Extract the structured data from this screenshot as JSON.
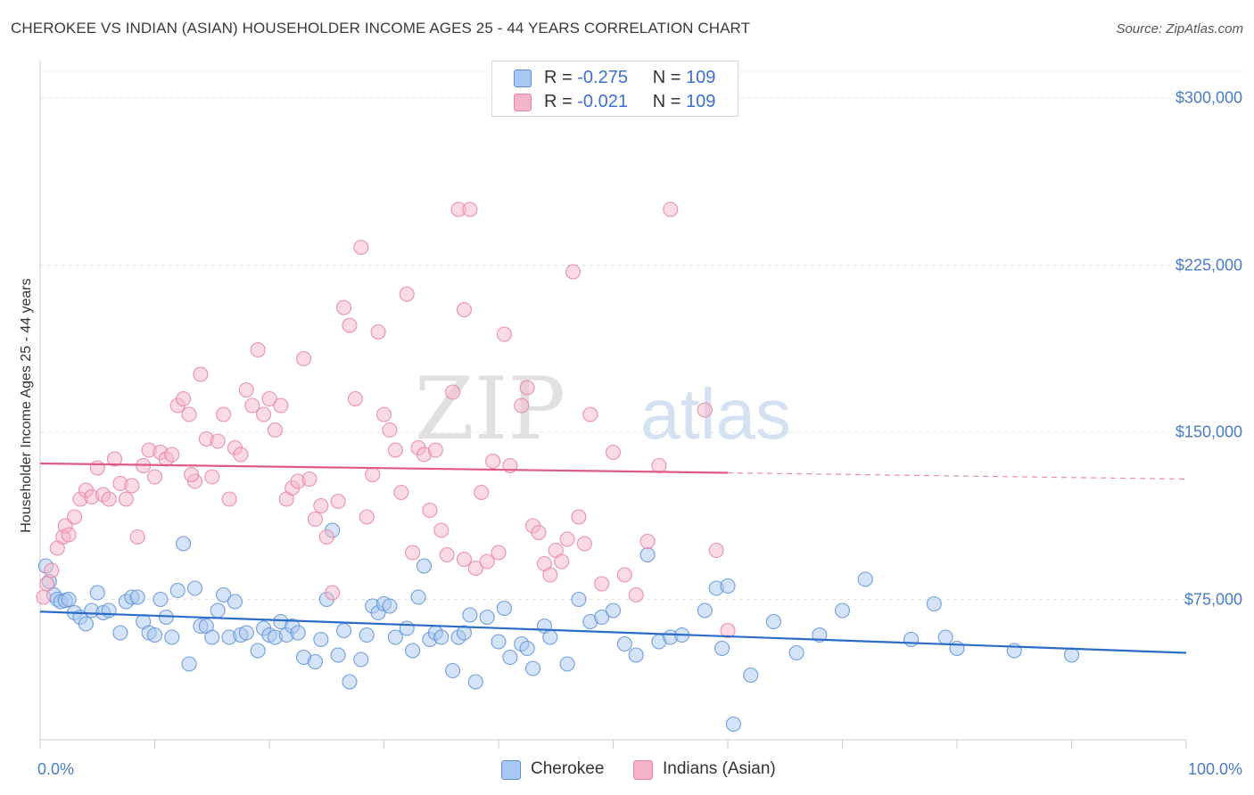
{
  "header": {
    "title": "CHEROKEE VS INDIAN (ASIAN) HOUSEHOLDER INCOME AGES 25 - 44 YEARS CORRELATION CHART",
    "source": "Source: ZipAtlas.com"
  },
  "watermark": {
    "zip": "ZIP",
    "atlas": "atlas"
  },
  "legend_stats": [
    {
      "r_label": "R =",
      "r_value": "-0.275",
      "n_label": "N =",
      "n_value": "109",
      "color": "#a9c7f0"
    },
    {
      "r_label": "R =",
      "r_value": "-0.021",
      "n_label": "N =",
      "n_value": "109",
      "color": "#f5b5c9"
    }
  ],
  "colors": {
    "cherokee_fill": "#a9c7f0",
    "cherokee_stroke": "#5a8fd8",
    "cherokee_line": "#2b6cc9",
    "indian_fill": "#f5b5c9",
    "indian_stroke": "#e8809f",
    "indian_line": "#e05a86",
    "axis_text": "#4a7cc4"
  },
  "chart_data": {
    "type": "scatter",
    "title": "CHEROKEE VS INDIAN (ASIAN) HOUSEHOLDER INCOME AGES 25 - 44 YEARS CORRELATION CHART",
    "xlabel": "",
    "ylabel": "Householder Income Ages 25 - 44 years",
    "xlim": [
      0,
      100
    ],
    "ylim": [
      12000,
      312000
    ],
    "x_tick_labels": [
      "0.0%",
      "100.0%"
    ],
    "y_ticks": [
      75000,
      150000,
      225000,
      300000
    ],
    "y_tick_labels": [
      "$75,000",
      "$150,000",
      "$225,000",
      "$300,000"
    ],
    "grid": true,
    "legend_position": "bottom",
    "series": [
      {
        "name": "Cherokee",
        "trend": {
          "x": [
            0,
            100
          ],
          "y": [
            69500,
            51000
          ],
          "dashed_from": 100
        },
        "points": [
          [
            0.5,
            90000
          ],
          [
            0.8,
            83000
          ],
          [
            1.2,
            77000
          ],
          [
            1.5,
            75000
          ],
          [
            1.8,
            74000
          ],
          [
            2.2,
            74500
          ],
          [
            2.5,
            75000
          ],
          [
            3,
            69000
          ],
          [
            3.5,
            67000
          ],
          [
            4,
            64000
          ],
          [
            4.5,
            70000
          ],
          [
            5,
            78000
          ],
          [
            5.5,
            69000
          ],
          [
            6,
            70000
          ],
          [
            7,
            60000
          ],
          [
            7.5,
            74000
          ],
          [
            8,
            76000
          ],
          [
            8.5,
            76000
          ],
          [
            9,
            65000
          ],
          [
            9.5,
            60000
          ],
          [
            10,
            59000
          ],
          [
            10.5,
            75000
          ],
          [
            11,
            67000
          ],
          [
            11.5,
            58000
          ],
          [
            12,
            79000
          ],
          [
            12.5,
            100000
          ],
          [
            13,
            46000
          ],
          [
            13.5,
            80000
          ],
          [
            14,
            63000
          ],
          [
            14.5,
            63000
          ],
          [
            15,
            58000
          ],
          [
            15.5,
            70000
          ],
          [
            16,
            77000
          ],
          [
            16.5,
            58000
          ],
          [
            17,
            74000
          ],
          [
            17.5,
            59000
          ],
          [
            18,
            60000
          ],
          [
            19,
            52000
          ],
          [
            19.5,
            62000
          ],
          [
            20,
            59000
          ],
          [
            20.5,
            58000
          ],
          [
            21,
            65000
          ],
          [
            21.5,
            59000
          ],
          [
            22,
            63000
          ],
          [
            22.5,
            60000
          ],
          [
            23,
            49000
          ],
          [
            24,
            47000
          ],
          [
            24.5,
            57000
          ],
          [
            25,
            75000
          ],
          [
            25.5,
            106000
          ],
          [
            26,
            50000
          ],
          [
            26.5,
            61000
          ],
          [
            27,
            38000
          ],
          [
            28,
            48000
          ],
          [
            28.5,
            59000
          ],
          [
            29,
            72000
          ],
          [
            29.5,
            69000
          ],
          [
            30,
            73000
          ],
          [
            30.5,
            72000
          ],
          [
            31,
            58000
          ],
          [
            32,
            62000
          ],
          [
            32.5,
            52000
          ],
          [
            33,
            76000
          ],
          [
            33.5,
            90000
          ],
          [
            34,
            57000
          ],
          [
            34.5,
            60000
          ],
          [
            35,
            58000
          ],
          [
            36,
            43000
          ],
          [
            36.5,
            58000
          ],
          [
            37,
            60000
          ],
          [
            37.5,
            68000
          ],
          [
            38,
            38000
          ],
          [
            39,
            67000
          ],
          [
            40,
            56000
          ],
          [
            40.5,
            71000
          ],
          [
            41,
            49000
          ],
          [
            42,
            55000
          ],
          [
            42.5,
            53000
          ],
          [
            43,
            44000
          ],
          [
            44,
            63000
          ],
          [
            44.5,
            58000
          ],
          [
            46,
            46000
          ],
          [
            47,
            75000
          ],
          [
            48,
            65000
          ],
          [
            49,
            67000
          ],
          [
            50,
            70000
          ],
          [
            51,
            55000
          ],
          [
            52,
            50000
          ],
          [
            53,
            95000
          ],
          [
            54,
            56000
          ],
          [
            55,
            58000
          ],
          [
            56,
            59000
          ],
          [
            58,
            70000
          ],
          [
            59,
            80000
          ],
          [
            59.5,
            53000
          ],
          [
            60,
            81000
          ],
          [
            60.5,
            19000
          ],
          [
            62,
            41000
          ],
          [
            64,
            65000
          ],
          [
            66,
            51000
          ],
          [
            68,
            59000
          ],
          [
            70,
            70000
          ],
          [
            72,
            84000
          ],
          [
            76,
            57000
          ],
          [
            78,
            73000
          ],
          [
            79,
            58000
          ],
          [
            80,
            53000
          ],
          [
            85,
            52000
          ],
          [
            90,
            50000
          ]
        ]
      },
      {
        "name": "Indians (Asian)",
        "trend": {
          "x": [
            0,
            100
          ],
          "y": [
            136000,
            129000
          ],
          "dashed_from": 60
        },
        "points": [
          [
            0.3,
            76000
          ],
          [
            0.6,
            82000
          ],
          [
            1,
            88000
          ],
          [
            1.5,
            98000
          ],
          [
            2,
            103000
          ],
          [
            2.2,
            108000
          ],
          [
            2.5,
            104000
          ],
          [
            3,
            112000
          ],
          [
            3.5,
            120000
          ],
          [
            4,
            124000
          ],
          [
            4.5,
            121000
          ],
          [
            5,
            134000
          ],
          [
            5.5,
            122000
          ],
          [
            6,
            120000
          ],
          [
            6.5,
            138000
          ],
          [
            7,
            127000
          ],
          [
            7.5,
            120000
          ],
          [
            8,
            126000
          ],
          [
            8.5,
            103000
          ],
          [
            9,
            135000
          ],
          [
            9.5,
            142000
          ],
          [
            10,
            130000
          ],
          [
            10.5,
            141000
          ],
          [
            11,
            138000
          ],
          [
            11.5,
            140000
          ],
          [
            12,
            162000
          ],
          [
            12.5,
            165000
          ],
          [
            13,
            158000
          ],
          [
            13.5,
            128000
          ],
          [
            14,
            176000
          ],
          [
            14.5,
            147000
          ],
          [
            15,
            130000
          ],
          [
            15.5,
            146000
          ],
          [
            16,
            158000
          ],
          [
            16.5,
            120000
          ],
          [
            17,
            143000
          ],
          [
            17.5,
            140000
          ],
          [
            18,
            169000
          ],
          [
            18.5,
            162000
          ],
          [
            19,
            187000
          ],
          [
            19.5,
            158000
          ],
          [
            20,
            165000
          ],
          [
            20.5,
            151000
          ],
          [
            21,
            162000
          ],
          [
            21.5,
            120000
          ],
          [
            22,
            125000
          ],
          [
            22.5,
            128000
          ],
          [
            23,
            183000
          ],
          [
            23.5,
            129000
          ],
          [
            24,
            111000
          ],
          [
            24.5,
            117000
          ],
          [
            25,
            103000
          ],
          [
            25.5,
            78000
          ],
          [
            26,
            119000
          ],
          [
            26.5,
            206000
          ],
          [
            27,
            198000
          ],
          [
            27.5,
            165000
          ],
          [
            28,
            233000
          ],
          [
            28.5,
            112000
          ],
          [
            29,
            131000
          ],
          [
            29.5,
            195000
          ],
          [
            30,
            158000
          ],
          [
            30.5,
            151000
          ],
          [
            31,
            142000
          ],
          [
            31.5,
            123000
          ],
          [
            32,
            212000
          ],
          [
            32.5,
            96000
          ],
          [
            33,
            143000
          ],
          [
            33.5,
            140000
          ],
          [
            34,
            115000
          ],
          [
            34.5,
            142000
          ],
          [
            35,
            106000
          ],
          [
            35.5,
            95000
          ],
          [
            36,
            168000
          ],
          [
            36.5,
            250000
          ],
          [
            37,
            205000
          ],
          [
            37.5,
            250000
          ],
          [
            38,
            89000
          ],
          [
            38.5,
            123000
          ],
          [
            39,
            92000
          ],
          [
            39.5,
            137000
          ],
          [
            40,
            96000
          ],
          [
            40.5,
            194000
          ],
          [
            41,
            135000
          ],
          [
            42,
            162000
          ],
          [
            42.5,
            170000
          ],
          [
            43,
            108000
          ],
          [
            43.5,
            105000
          ],
          [
            44,
            91000
          ],
          [
            44.5,
            86000
          ],
          [
            45,
            97000
          ],
          [
            45.5,
            92000
          ],
          [
            46,
            102000
          ],
          [
            46.5,
            222000
          ],
          [
            47,
            112000
          ],
          [
            47.5,
            100000
          ],
          [
            48,
            158000
          ],
          [
            49,
            82000
          ],
          [
            50,
            141000
          ],
          [
            51,
            86000
          ],
          [
            52,
            77000
          ],
          [
            53,
            101000
          ],
          [
            54,
            135000
          ],
          [
            55,
            250000
          ],
          [
            58,
            160000
          ],
          [
            59,
            97000
          ],
          [
            60,
            61000
          ],
          [
            37,
            93000
          ],
          [
            13.2,
            131000
          ]
        ]
      }
    ]
  },
  "legend_bottom": [
    {
      "label": "Cherokee",
      "color": "#a9c7f0"
    },
    {
      "label": "Indians (Asian)",
      "color": "#f5b5c9"
    }
  ]
}
